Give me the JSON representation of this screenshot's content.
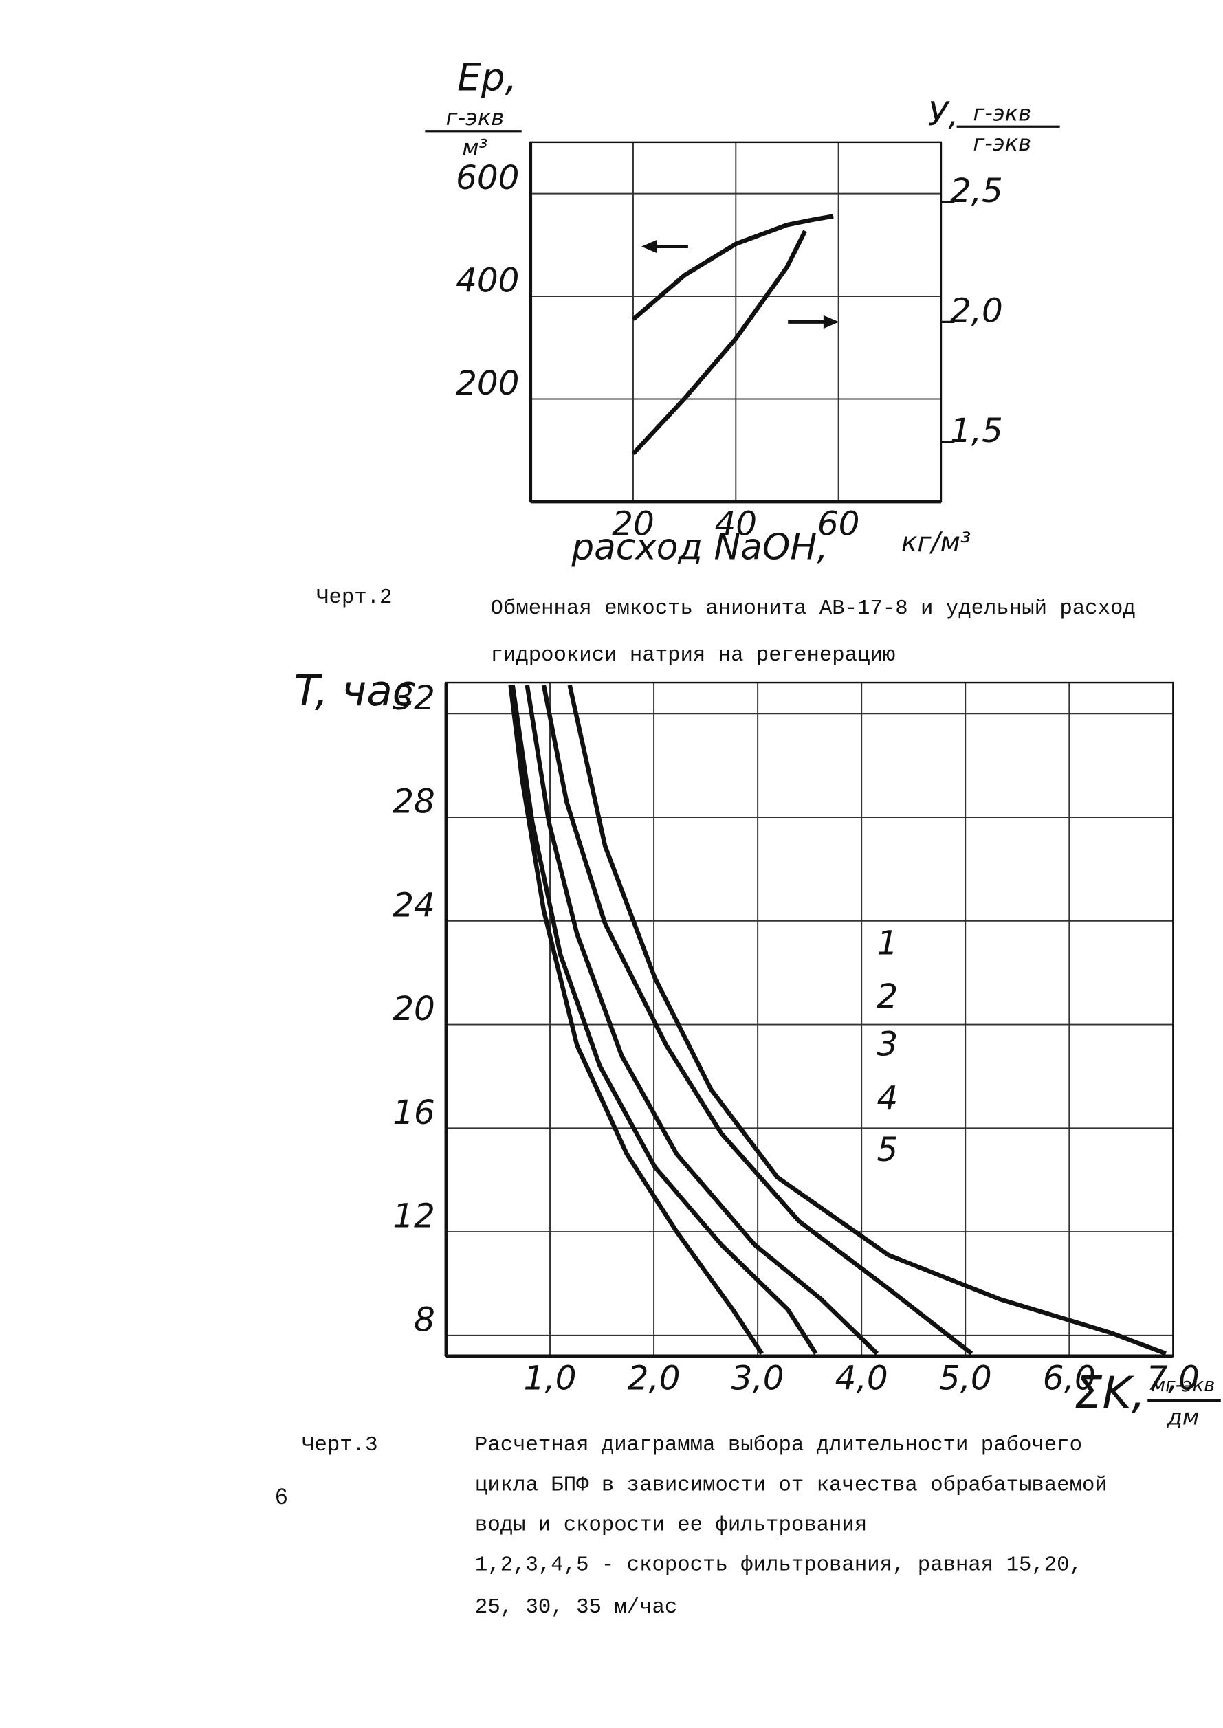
{
  "page_number": "6",
  "chart_data": [
    {
      "type": "line",
      "ylabel": "Eр,",
      "ylabel_unit_num": "г-экв",
      "ylabel_unit_den": "м³",
      "y2label": "У,",
      "y2label_unit_num": "г-экв",
      "y2label_unit_den": "г-экв",
      "xlabel": "расход NaOH,",
      "xlabel_unit": "кг/м³",
      "caption_label": "Черт.2",
      "caption": [
        "Обменная емкость анионита АВ-17-8 и удельный расход",
        "гидроокиси натрия на регенерацию"
      ],
      "xlim": [
        0,
        80
      ],
      "xticks": [
        20,
        40,
        60
      ],
      "ylim": [
        0,
        700
      ],
      "yticks": [
        200,
        400,
        600
      ],
      "y2lim": [
        1.25,
        2.75
      ],
      "y2ticks": [
        {
          "value": 1.5,
          "label": "1,5"
        },
        {
          "value": 2.0,
          "label": "2,0"
        },
        {
          "value": 2.5,
          "label": "2,5"
        }
      ],
      "grid": true,
      "series": [
        {
          "color": "#111111",
          "x": [
            20,
            30,
            40,
            50,
            55,
            59
          ],
          "values": [
            355,
            441,
            502,
            539,
            549,
            556
          ]
        },
        {
          "color": "#111111",
          "axis": "y2",
          "x": [
            20,
            30,
            40,
            50,
            53.5
          ],
          "values": [
            1.45,
            1.68,
            1.93,
            2.23,
            2.38
          ]
        }
      ]
    },
    {
      "type": "line",
      "ylabel": "T, час",
      "xlabel": "ΣK,",
      "xlabel_unit_num": "мг-экв",
      "xlabel_unit_den": "дм",
      "caption_label": "Черт.3",
      "caption": [
        "Расчетная диаграмма выбора длительности рабочего",
        "цикла БПФ в зависимости от качества обрабатываемой",
        "воды и скорости ее фильтрования",
        "1,2,3,4,5 - скорость фильтрования, равная 15,20,",
        "25, 30, 35 м/час"
      ],
      "xlim": [
        0,
        7
      ],
      "xticks": [
        {
          "value": 1,
          "label": "1,0"
        },
        {
          "value": 2,
          "label": "2,0"
        },
        {
          "value": 3,
          "label": "3,0"
        },
        {
          "value": 4,
          "label": "4,0"
        },
        {
          "value": 5,
          "label": "5,0"
        },
        {
          "value": 6,
          "label": "6,0"
        },
        {
          "value": 7,
          "label": "7,0"
        }
      ],
      "ylim": [
        7.2,
        33.2
      ],
      "yticks": [
        8,
        12,
        16,
        20,
        24,
        28,
        32
      ],
      "grid": true,
      "series": [
        {
          "name": "1",
          "color": "#111111",
          "x": [
            1.19,
            1.53,
            2.01,
            2.55,
            3.19,
            4.26,
            5.33,
            6.4,
            6.93
          ],
          "values": [
            33.1,
            26.9,
            21.8,
            17.5,
            14.1,
            11.1,
            9.4,
            8.1,
            7.3
          ]
        },
        {
          "name": "2",
          "color": "#111111",
          "x": [
            0.94,
            1.16,
            1.53,
            2.12,
            2.65,
            3.4,
            4.26,
            5.06
          ],
          "values": [
            33.1,
            28.6,
            23.9,
            19.2,
            15.8,
            12.4,
            9.8,
            7.3
          ]
        },
        {
          "name": "3",
          "color": "#111111",
          "x": [
            0.78,
            0.99,
            1.26,
            1.69,
            2.22,
            2.97,
            3.61,
            4.15
          ],
          "values": [
            33.1,
            27.8,
            23.5,
            18.8,
            15.0,
            11.5,
            9.4,
            7.3
          ]
        },
        {
          "name": "4",
          "color": "#111111",
          "x": [
            0.64,
            0.83,
            1.1,
            1.48,
            2.01,
            2.65,
            3.29,
            3.56
          ],
          "values": [
            33.1,
            27.8,
            22.7,
            18.4,
            14.5,
            11.5,
            9.0,
            7.3
          ]
        },
        {
          "name": "5",
          "color": "#111111",
          "x": [
            0.62,
            0.73,
            0.94,
            1.26,
            1.74,
            2.22,
            2.76,
            3.04
          ],
          "values": [
            33.1,
            29.5,
            24.4,
            19.2,
            15.0,
            12.0,
            9.0,
            7.3
          ]
        }
      ]
    }
  ]
}
